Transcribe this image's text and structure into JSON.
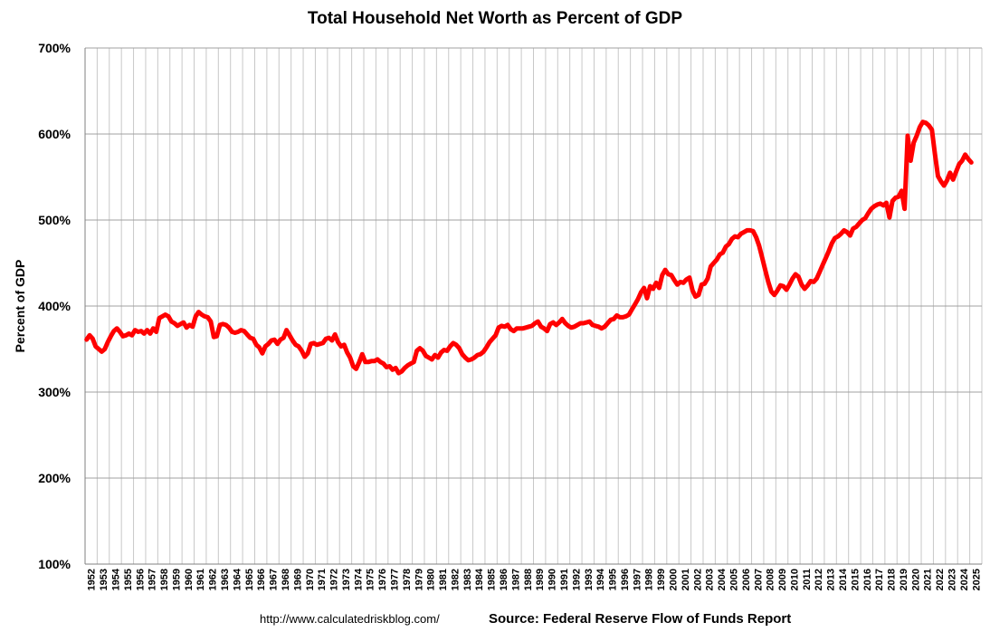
{
  "chart_data": {
    "type": "line",
    "title": "Total Household Net Worth as Percent of GDP",
    "ylabel": "Percent of GDP",
    "xlabel": "",
    "ylim": [
      100,
      700
    ],
    "yticks": [
      "100%",
      "200%",
      "300%",
      "400%",
      "500%",
      "600%",
      "700%"
    ],
    "ytick_values": [
      100,
      200,
      300,
      400,
      500,
      600,
      700
    ],
    "xlim": [
      1952,
      2026
    ],
    "xticks": [
      "1952",
      "1953",
      "1954",
      "1955",
      "1956",
      "1957",
      "1958",
      "1959",
      "1960",
      "1961",
      "1962",
      "1963",
      "1964",
      "1965",
      "1966",
      "1967",
      "1968",
      "1969",
      "1970",
      "1971",
      "1972",
      "1973",
      "1974",
      "1975",
      "1976",
      "1977",
      "1978",
      "1979",
      "1980",
      "1981",
      "1982",
      "1983",
      "1984",
      "1985",
      "1986",
      "1987",
      "1988",
      "1989",
      "1990",
      "1991",
      "1992",
      "1993",
      "1994",
      "1995",
      "1996",
      "1997",
      "1998",
      "1999",
      "2000",
      "2001",
      "2002",
      "2003",
      "2004",
      "2005",
      "2006",
      "2007",
      "2008",
      "2009",
      "2010",
      "2011",
      "2012",
      "2013",
      "2014",
      "2015",
      "2016",
      "2017",
      "2018",
      "2019",
      "2020",
      "2021",
      "2022",
      "2023",
      "2024",
      "2025"
    ],
    "grid": true,
    "line_color": "#ff0000",
    "series": [
      {
        "x": [
          1952.0,
          1952.25,
          1952.5,
          1952.75,
          1953.0,
          1953.25,
          1953.5,
          1953.75,
          1954.0,
          1954.25,
          1954.5,
          1954.75,
          1955.0,
          1955.25,
          1955.5,
          1955.75,
          1956.0,
          1956.25,
          1956.5,
          1956.75,
          1957.0,
          1957.25,
          1957.5,
          1957.75,
          1958.0,
          1958.25,
          1958.5,
          1958.75,
          1959.0,
          1959.25,
          1959.5,
          1959.75,
          1960.0,
          1960.25,
          1960.5,
          1960.75,
          1961.0,
          1961.25,
          1961.5,
          1961.75,
          1962.0,
          1962.25,
          1962.5,
          1962.75,
          1963.0,
          1963.25,
          1963.5,
          1963.75,
          1964.0,
          1964.25,
          1964.5,
          1964.75,
          1965.0,
          1965.25,
          1965.5,
          1965.75,
          1966.0,
          1966.25,
          1966.5,
          1966.75,
          1967.0,
          1967.25,
          1967.5,
          1967.75,
          1968.0,
          1968.25,
          1968.5,
          1968.75,
          1969.0,
          1969.25,
          1969.5,
          1969.75,
          1970.0,
          1970.25,
          1970.5,
          1970.75,
          1971.0,
          1971.25,
          1971.5,
          1971.75,
          1972.0,
          1972.25,
          1972.5,
          1972.75,
          1973.0,
          1973.25,
          1973.5,
          1973.75,
          1974.0,
          1974.25,
          1974.5,
          1974.75,
          1975.0,
          1975.25,
          1975.5,
          1975.75,
          1976.0,
          1976.25,
          1976.5,
          1976.75,
          1977.0,
          1977.25,
          1977.5,
          1977.75,
          1978.0,
          1978.25,
          1978.5,
          1978.75,
          1979.0,
          1979.25,
          1979.5,
          1979.75,
          1980.0,
          1980.25,
          1980.5,
          1980.75,
          1981.0,
          1981.25,
          1981.5,
          1981.75,
          1982.0,
          1982.25,
          1982.5,
          1982.75,
          1983.0,
          1983.25,
          1983.5,
          1983.75,
          1984.0,
          1984.25,
          1984.5,
          1984.75,
          1985.0,
          1985.25,
          1985.5,
          1985.75,
          1986.0,
          1986.25,
          1986.5,
          1986.75,
          1987.0,
          1987.25,
          1987.5,
          1987.75,
          1988.0,
          1988.25,
          1988.5,
          1988.75,
          1989.0,
          1989.25,
          1989.5,
          1989.75,
          1990.0,
          1990.25,
          1990.5,
          1990.75,
          1991.0,
          1991.25,
          1991.5,
          1991.75,
          1992.0,
          1992.25,
          1992.5,
          1992.75,
          1993.0,
          1993.25,
          1993.5,
          1993.75,
          1994.0,
          1994.25,
          1994.5,
          1994.75,
          1995.0,
          1995.25,
          1995.5,
          1995.75,
          1996.0,
          1996.25,
          1996.5,
          1996.75,
          1997.0,
          1997.25,
          1997.5,
          1997.75,
          1998.0,
          1998.25,
          1998.5,
          1998.75,
          1999.0,
          1999.25,
          1999.5,
          1999.75,
          2000.0,
          2000.25,
          2000.5,
          2000.75,
          2001.0,
          2001.25,
          2001.5,
          2001.75,
          2002.0,
          2002.25,
          2002.5,
          2002.75,
          2003.0,
          2003.25,
          2003.5,
          2003.75,
          2004.0,
          2004.25,
          2004.5,
          2004.75,
          2005.0,
          2005.25,
          2005.5,
          2005.75,
          2006.0,
          2006.25,
          2006.5,
          2006.75,
          2007.0,
          2007.25,
          2007.5,
          2007.75,
          2008.0,
          2008.25,
          2008.5,
          2008.75,
          2009.0,
          2009.25,
          2009.5,
          2009.75,
          2010.0,
          2010.25,
          2010.5,
          2010.75,
          2011.0,
          2011.25,
          2011.5,
          2011.75,
          2012.0,
          2012.25,
          2012.5,
          2012.75,
          2013.0,
          2013.25,
          2013.5,
          2013.75,
          2014.0,
          2014.25,
          2014.5,
          2014.75,
          2015.0,
          2015.25,
          2015.5,
          2015.75,
          2016.0,
          2016.25,
          2016.5,
          2016.75,
          2017.0,
          2017.25,
          2017.5,
          2017.75,
          2018.0,
          2018.25,
          2018.5,
          2018.75,
          2019.0,
          2019.25,
          2019.5,
          2019.75,
          2020.0,
          2020.25,
          2020.5,
          2020.75,
          2021.0,
          2021.25,
          2021.5,
          2021.75,
          2022.0,
          2022.25,
          2022.5,
          2022.75,
          2023.0,
          2023.25,
          2023.5,
          2023.75,
          2024.0,
          2024.25,
          2024.5,
          2024.75,
          2025.0
        ],
        "y": [
          361,
          366,
          362,
          353,
          350,
          347,
          350,
          358,
          365,
          371,
          374,
          370,
          365,
          366,
          368,
          366,
          372,
          370,
          371,
          368,
          372,
          368,
          374,
          370,
          386,
          388,
          390,
          388,
          382,
          380,
          377,
          379,
          381,
          375,
          378,
          376,
          388,
          393,
          390,
          388,
          387,
          382,
          364,
          365,
          378,
          379,
          378,
          375,
          370,
          369,
          370,
          372,
          371,
          367,
          363,
          362,
          355,
          352,
          345,
          353,
          356,
          360,
          361,
          356,
          361,
          363,
          372,
          366,
          360,
          355,
          353,
          348,
          341,
          345,
          356,
          357,
          355,
          356,
          357,
          362,
          363,
          360,
          367,
          358,
          353,
          355,
          346,
          340,
          330,
          327,
          335,
          344,
          335,
          335,
          336,
          336,
          338,
          335,
          333,
          329,
          330,
          326,
          328,
          322,
          324,
          328,
          331,
          333,
          335,
          348,
          351,
          348,
          342,
          340,
          338,
          343,
          340,
          346,
          349,
          348,
          353,
          357,
          355,
          351,
          344,
          340,
          337,
          338,
          340,
          343,
          344,
          347,
          352,
          358,
          362,
          366,
          375,
          377,
          376,
          378,
          373,
          371,
          374,
          374,
          374,
          375,
          376,
          377,
          380,
          382,
          376,
          374,
          371,
          379,
          381,
          378,
          381,
          385,
          380,
          377,
          375,
          376,
          378,
          380,
          380,
          381,
          382,
          378,
          377,
          376,
          374,
          376,
          380,
          384,
          385,
          389,
          387,
          387,
          388,
          390,
          396,
          402,
          408,
          416,
          421,
          409,
          423,
          420,
          427,
          421,
          436,
          442,
          437,
          436,
          430,
          425,
          428,
          427,
          431,
          433,
          418,
          411,
          413,
          425,
          426,
          432,
          446,
          450,
          454,
          460,
          462,
          469,
          472,
          478,
          481,
          480,
          484,
          486,
          488,
          488,
          487,
          480,
          470,
          456,
          442,
          428,
          417,
          413,
          418,
          424,
          423,
          419,
          425,
          432,
          437,
          434,
          425,
          420,
          424,
          429,
          428,
          432,
          440,
          448,
          456,
          464,
          473,
          479,
          481,
          484,
          488,
          486,
          482,
          490,
          492,
          496,
          500,
          502,
          508,
          513,
          516,
          518,
          519,
          517,
          520,
          503,
          522,
          526,
          527,
          534,
          513,
          598,
          569,
          590,
          598,
          608,
          614,
          613,
          610,
          605,
          577,
          551,
          545,
          540,
          546,
          555,
          547,
          556,
          565,
          569,
          576,
          571,
          567
        ]
      }
    ]
  },
  "footer": {
    "url": "http://www.calculatedriskblog.com/",
    "source": "Source: Federal Reserve Flow of Funds Report"
  }
}
